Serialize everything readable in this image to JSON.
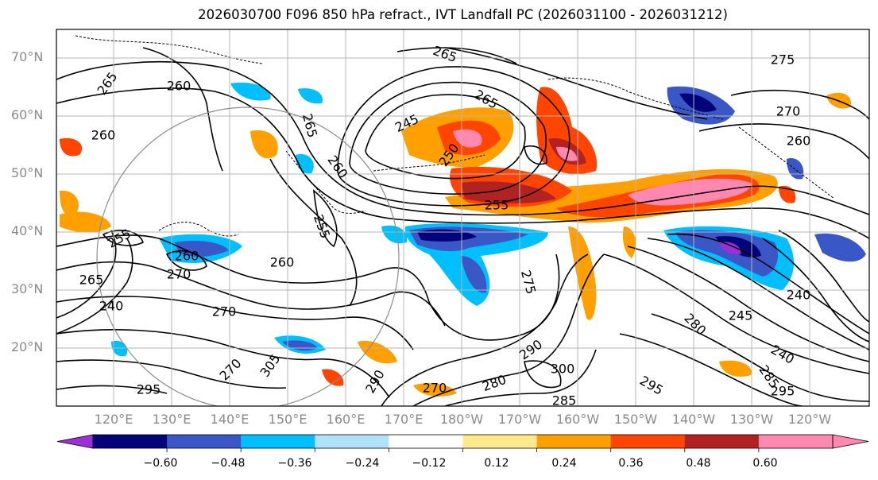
{
  "title": "2026030700 F096 850 hPa refract., IVT Landfall PC (2026031100 - 2026031212)",
  "lat_labels": [
    "70°N",
    "60°N",
    "50°N",
    "40°N",
    "30°N",
    "20°N"
  ],
  "lon_labels": [
    "120°E",
    "130°E",
    "140°E",
    "150°E",
    "160°E",
    "170°E",
    "180°W",
    "170°W",
    "160°W",
    "150°W",
    "140°W",
    "130°W",
    "120°W"
  ],
  "contour_labels": [
    "265",
    "260",
    "260",
    "265",
    "265",
    "275",
    "270",
    "260",
    "245",
    "250",
    "265",
    "255",
    "255",
    "260",
    "260",
    "255",
    "260",
    "265",
    "270",
    "275",
    "280",
    "245",
    "240",
    "240",
    "270",
    "295",
    "305",
    "290",
    "290",
    "300",
    "280",
    "295",
    "285",
    "295",
    "285",
    "270",
    "270",
    "240"
  ],
  "colorbar": {
    "ticks": [
      "−0.60",
      "−0.48",
      "−0.36",
      "−0.24",
      "−0.12",
      "0.12",
      "0.24",
      "0.36",
      "0.48",
      "0.60"
    ],
    "colors": [
      "#9b30d8",
      "#03037a",
      "#3a57c8",
      "#00bfff",
      "#b0e2fa",
      "#ffffff",
      "#ffe98a",
      "#ff9f00",
      "#ff4500",
      "#b22222",
      "#ff88b0",
      "#ff88b0"
    ]
  }
}
